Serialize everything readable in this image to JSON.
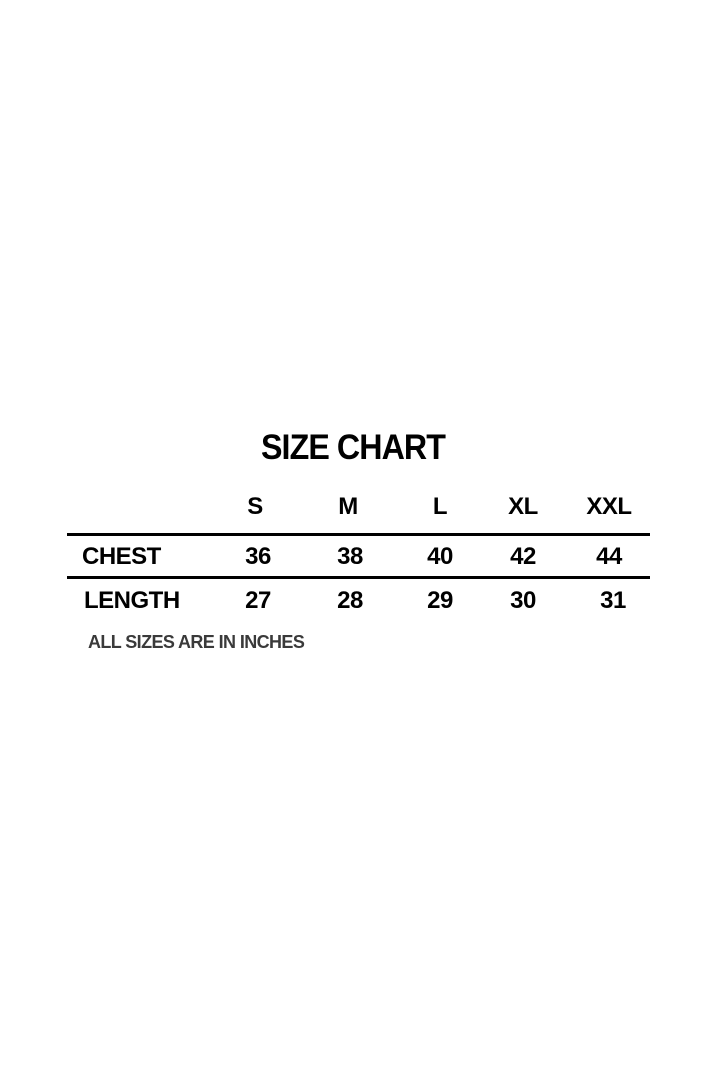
{
  "title": "SIZE CHART",
  "sizes": [
    "S",
    "M",
    "L",
    "XL",
    "XXL"
  ],
  "rows": [
    {
      "label": "CHEST",
      "values": [
        "36",
        "38",
        "40",
        "42",
        "44"
      ]
    },
    {
      "label": "LENGTH",
      "values": [
        "27",
        "28",
        "29",
        "30",
        "31"
      ]
    }
  ],
  "note": "ALL SIZES ARE IN INCHES"
}
